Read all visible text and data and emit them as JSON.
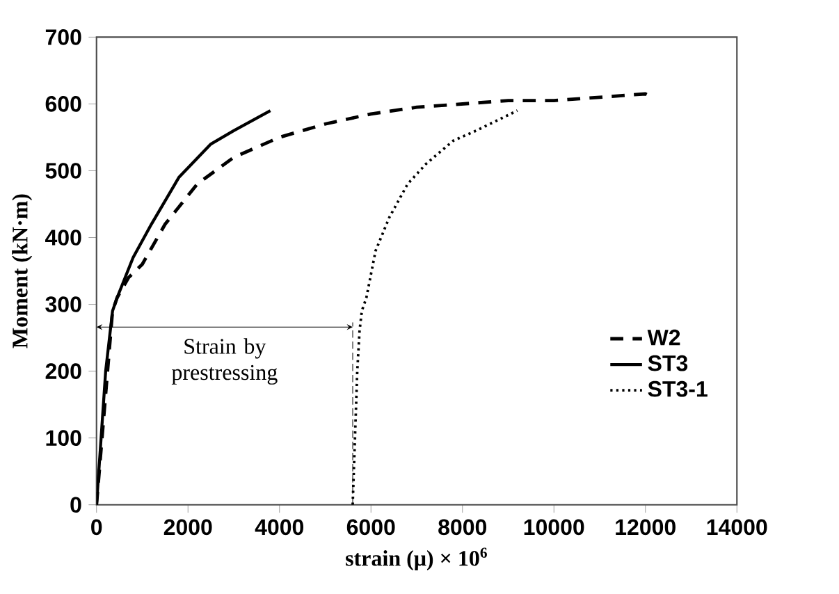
{
  "chart_data": {
    "type": "line",
    "xlabel": "strain (μ) × 10$^{6}$",
    "ylabel": "Moment (kN·m)",
    "xlim": [
      0,
      14000
    ],
    "ylim": [
      0,
      700
    ],
    "xticks": [
      0,
      2000,
      4000,
      6000,
      8000,
      10000,
      12000,
      14000
    ],
    "yticks": [
      0,
      100,
      200,
      300,
      400,
      500,
      600,
      700
    ],
    "legend": "right",
    "grid": false,
    "series": [
      {
        "name": "W2",
        "color": "#000000",
        "line_style": "dashed",
        "x": [
          0,
          350,
          450,
          700,
          1000,
          1500,
          2200,
          3000,
          4000,
          5000,
          6000,
          7000,
          8000,
          9000,
          10000,
          11000,
          12000,
          12100
        ],
        "values": [
          0,
          290,
          310,
          340,
          360,
          420,
          480,
          520,
          550,
          570,
          585,
          595,
          600,
          605,
          605,
          610,
          615,
          612
        ]
      },
      {
        "name": "ST3",
        "color": "#000000",
        "line_style": "solid",
        "x": [
          0,
          100,
          200,
          350,
          450,
          800,
          1200,
          1800,
          2500,
          3000,
          3800
        ],
        "values": [
          0,
          100,
          200,
          290,
          310,
          370,
          420,
          490,
          540,
          560,
          590
        ]
      },
      {
        "name": "ST3-1",
        "color": "#000000",
        "line_style": "dotted",
        "x": [
          5600,
          5650,
          5700,
          5750,
          5800,
          5900,
          6100,
          6400,
          6800,
          7200,
          7800,
          8300,
          9200
        ],
        "values": [
          0,
          100,
          200,
          260,
          290,
          310,
          380,
          430,
          480,
          510,
          545,
          560,
          590
        ]
      }
    ],
    "ref_lines": [
      {
        "axis": "x",
        "value": 5600,
        "line_style": "dashed",
        "color": "#000000"
      }
    ],
    "annotations": [
      "Strain by prestressing"
    ]
  }
}
